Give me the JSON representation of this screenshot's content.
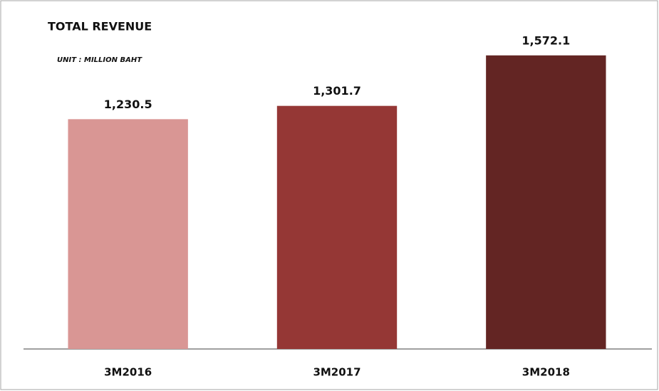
{
  "chart_data": {
    "type": "bar",
    "title": "TOTAL REVENUE",
    "subtitle": "UNIT : MILLION BAHT",
    "categories": [
      "3M2016",
      "3M2017",
      "3M2018"
    ],
    "values": [
      1230.5,
      1301.7,
      1572.1
    ],
    "value_labels": [
      "1,230.5",
      "1,301.7",
      "1,572.1"
    ],
    "colors": [
      "#d99694",
      "#953735",
      "#632523"
    ],
    "ylim": [
      0,
      1800
    ]
  }
}
